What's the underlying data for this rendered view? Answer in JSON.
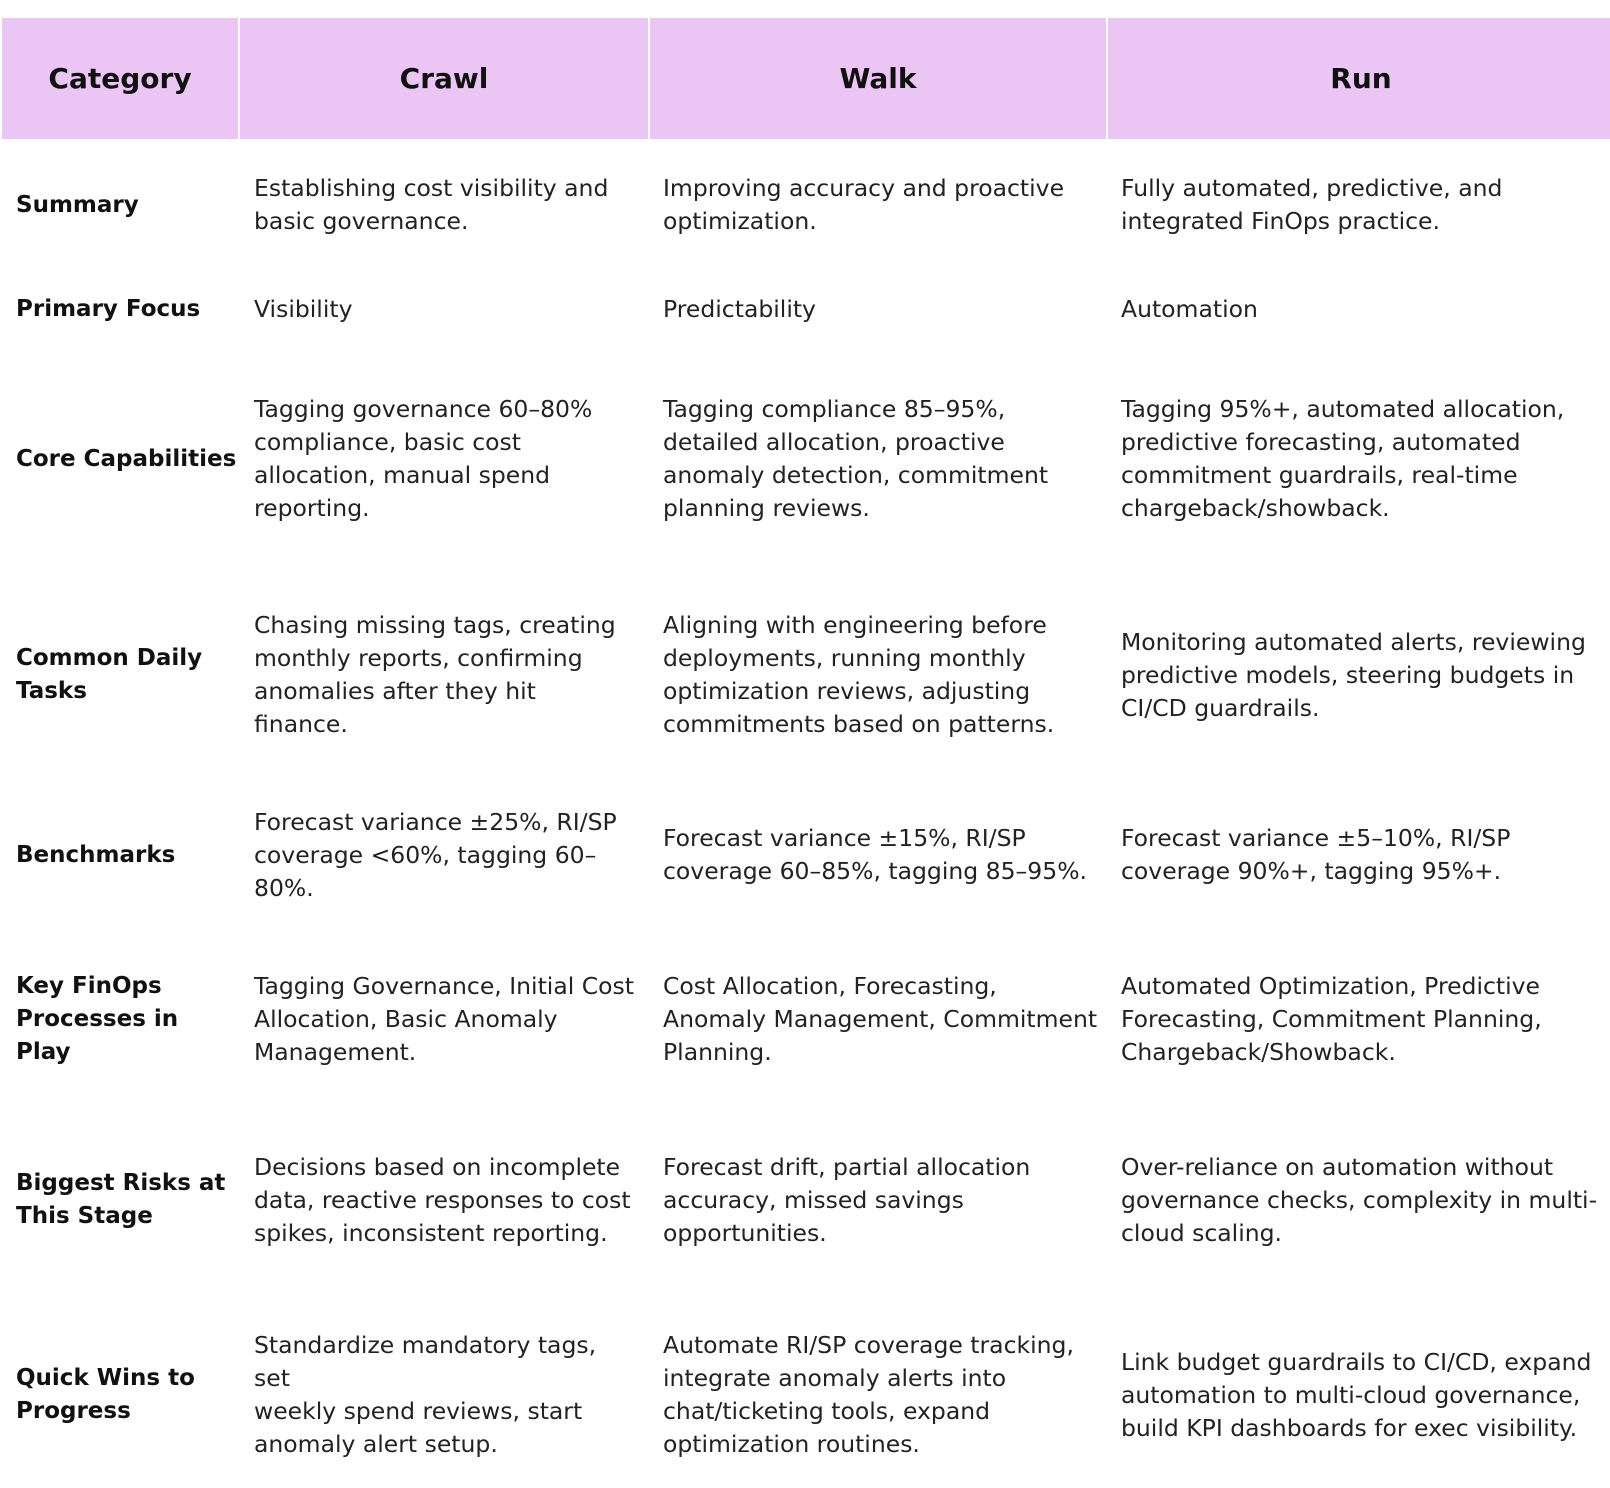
{
  "table": {
    "headers": [
      "Category",
      "Crawl",
      "Walk",
      "Run"
    ],
    "rows": [
      {
        "category": "Summary",
        "crawl": "Establishing cost visibility and\nbasic governance.",
        "walk": "Improving accuracy and proactive\noptimization.",
        "run": "Fully automated, predictive, and\nintegrated FinOps practice."
      },
      {
        "category": "Primary Focus",
        "crawl": "Visibility",
        "walk": "Predictability",
        "run": "Automation"
      },
      {
        "category": "Core Capabilities",
        "crawl": "Tagging governance 60–80%\ncompliance, basic cost\nallocation, manual spend\nreporting.",
        "walk": "Tagging compliance 85–95%,\ndetailed allocation, proactive\nanomaly detection, commitment\nplanning reviews.",
        "run": "Tagging 95%+, automated allocation,\npredictive forecasting, automated\ncommitment guardrails, real-time\nchargeback/showback."
      },
      {
        "category": "Common Daily\nTasks",
        "crawl": "Chasing missing tags, creating\nmonthly reports, confirming\nanomalies after they hit finance.",
        "walk": "Aligning with engineering before\ndeployments, running monthly\noptimization reviews, adjusting\ncommitments based on patterns.",
        "run": "Monitoring automated alerts, reviewing\npredictive models, steering budgets in\nCI/CD guardrails."
      },
      {
        "category": "Benchmarks",
        "crawl": "Forecast variance ±25%, RI/SP\ncoverage <60%, tagging 60–\n80%.",
        "walk": "Forecast variance ±15%, RI/SP\ncoverage 60–85%, tagging 85–95%.",
        "run": "Forecast variance ±5–10%, RI/SP\ncoverage 90%+, tagging 95%+."
      },
      {
        "category": "Key FinOps\nProcesses in Play",
        "crawl": "Tagging Governance, Initial Cost\nAllocation, Basic Anomaly\nManagement.",
        "walk": "Cost Allocation, Forecasting,\nAnomaly Management, Commitment\nPlanning.",
        "run": "Automated Optimization, Predictive\nForecasting, Commitment Planning,\nChargeback/Showback."
      },
      {
        "category": "Biggest Risks at\nThis Stage",
        "crawl": "Decisions based on incomplete\ndata, reactive responses to cost\nspikes, inconsistent reporting.",
        "walk": "Forecast drift, partial allocation\naccuracy, missed savings\nopportunities.",
        "run": "Over-reliance on automation without\ngovernance checks, complexity in multi-\ncloud scaling."
      },
      {
        "category": "Quick Wins to\nProgress",
        "crawl": "Standardize mandatory tags, set\nweekly spend reviews, start\nanomaly alert setup.",
        "walk": "Automate RI/SP coverage tracking,\nintegrate anomaly alerts into\nchat/ticketing tools, expand\noptimization routines.",
        "run": "Link budget guardrails to CI/CD, expand\nautomation to multi-cloud governance,\nbuild KPI dashboards for exec visibility."
      }
    ]
  },
  "colors": {
    "header_bg": "#ebc6f4",
    "text": "#222222"
  }
}
